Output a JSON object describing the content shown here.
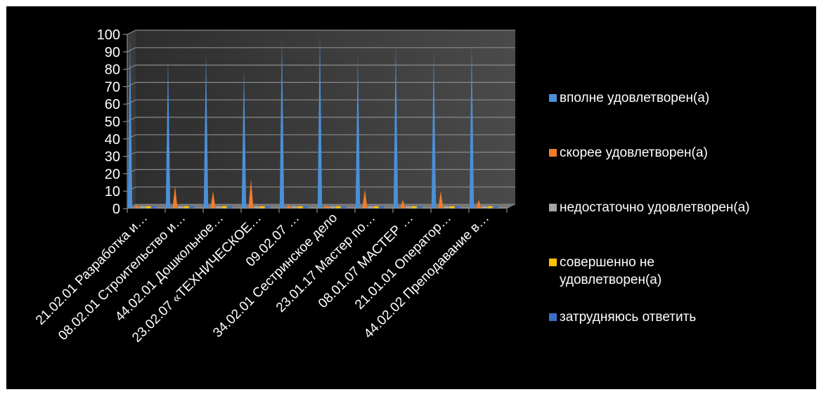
{
  "chart_data": {
    "type": "bar",
    "style": "3d-cone",
    "background": "#000000",
    "ylim": [
      0,
      100
    ],
    "yticks": [
      0,
      10,
      20,
      30,
      40,
      50,
      60,
      70,
      80,
      90,
      100
    ],
    "grid": true,
    "legend_position": "right",
    "categories": [
      "21.02.01 Разработка и…",
      "08.02.01 Строительство и…",
      "44.02.01 Дошкольное…",
      "23.02.07 «ТЕХНИЧЕСКОЕ…",
      "09.02.07 …",
      "34.02.01 Сестринское дело",
      "23.01.17 Мастер по…",
      "08.01.07 МАСТЕР …",
      "21.01.01 Оператор…",
      "44.02.02  Преподавание в…"
    ],
    "series": [
      {
        "name": "вполне удовлетворен(а)",
        "color": "#4a90d9",
        "values": [
          98,
          86,
          89,
          81,
          97,
          100,
          88,
          94,
          90,
          94
        ]
      },
      {
        "name": "скорее удовлетворен(а)",
        "color": "#f07c2c",
        "values": [
          2,
          13,
          10,
          17,
          2,
          0,
          11,
          5,
          10,
          5
        ]
      },
      {
        "name": "недостаточно удовлетворен(а)",
        "color": "#a5a5a5",
        "values": [
          0,
          0,
          0,
          0,
          0,
          0,
          0,
          0,
          0,
          0
        ]
      },
      {
        "name": "совершенно не удовлетворен(а)",
        "color": "#ffc000",
        "values": [
          0,
          0,
          0,
          0,
          0,
          0,
          0,
          0,
          0,
          0
        ]
      },
      {
        "name": "затрудняюсь ответить",
        "color": "#3b6fc6",
        "values": [
          0,
          0,
          0,
          0,
          0,
          0,
          0,
          0,
          0,
          0
        ]
      }
    ]
  }
}
